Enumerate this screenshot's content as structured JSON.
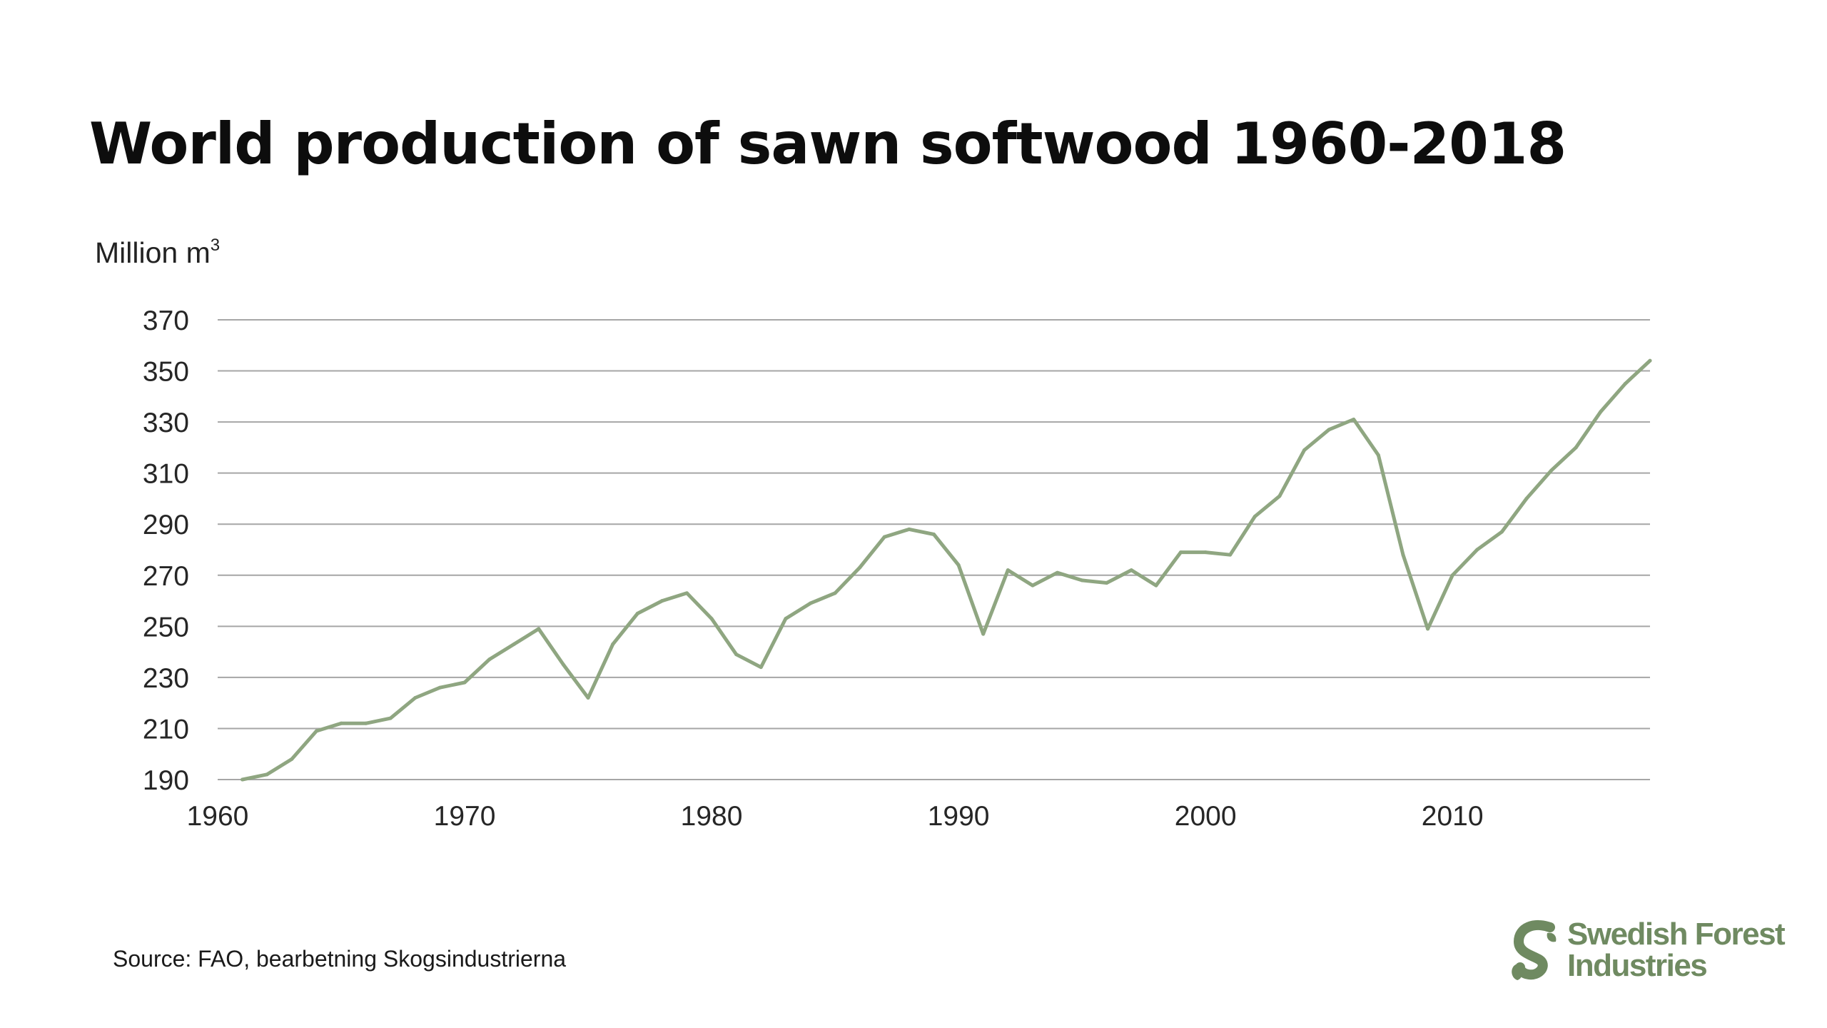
{
  "slide": {
    "title": "World production of sawn softwood 1960-2018",
    "unit_label": "Million m",
    "unit_superscript": "3",
    "source": "Source: FAO, bearbetning Skogsindustrierna",
    "logo": {
      "line1": "Swedish Forest",
      "line2": "Industries",
      "mark": "s-leaf-icon",
      "color": "#6f8a61"
    }
  },
  "chart_data": {
    "type": "line",
    "title": "World production of sawn softwood 1960-2018",
    "ylabel": "Million m3",
    "xlabel": "",
    "ylim": [
      190,
      370
    ],
    "yticks": [
      370,
      350,
      330,
      310,
      290,
      270,
      250,
      230,
      210,
      190
    ],
    "xlim": [
      1960,
      2018
    ],
    "xticks": [
      1960,
      1970,
      1980,
      1990,
      2000,
      2010
    ],
    "grid": true,
    "line_color": "#8fa681",
    "grid_color": "#a6a6a6",
    "series": [
      {
        "x": [
          1961,
          1962,
          1963,
          1964,
          1965,
          1966,
          1967,
          1968,
          1969,
          1970,
          1971,
          1972,
          1973,
          1974,
          1975,
          1976,
          1977,
          1978,
          1979,
          1980,
          1981,
          1982,
          1983,
          1984,
          1985,
          1986,
          1987,
          1988,
          1989,
          1990,
          1991,
          1992,
          1993,
          1994,
          1995,
          1996,
          1997,
          1998,
          1999,
          2000,
          2001,
          2002,
          2003,
          2004,
          2005,
          2006,
          2007,
          2008,
          2009,
          2010,
          2011,
          2012,
          2013,
          2014,
          2015,
          2016,
          2017,
          2018
        ],
        "values": [
          190,
          192,
          198,
          209,
          212,
          212,
          214,
          222,
          226,
          228,
          237,
          243,
          249,
          235,
          222,
          243,
          255,
          260,
          263,
          253,
          239,
          234,
          253,
          259,
          263,
          273,
          285,
          288,
          286,
          274,
          247,
          272,
          266,
          271,
          268,
          267,
          272,
          266,
          279,
          279,
          278,
          293,
          301,
          319,
          327,
          331,
          317,
          278,
          249,
          270,
          280,
          287,
          300,
          311,
          320,
          334,
          345,
          354
        ]
      }
    ]
  }
}
